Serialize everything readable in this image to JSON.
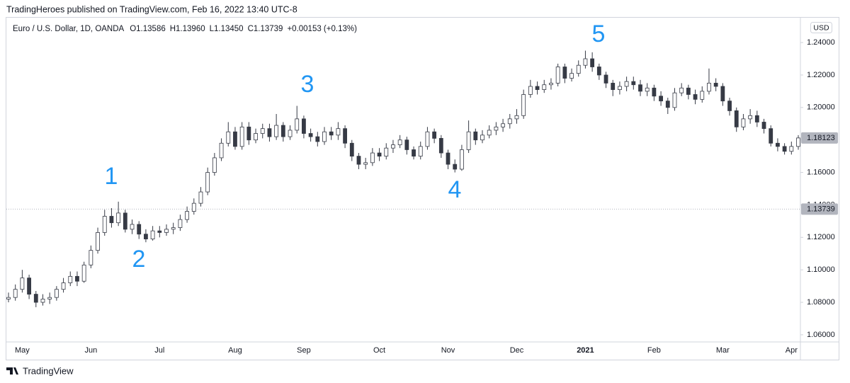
{
  "chart_data": {
    "type": "candlestick",
    "header": "TradingHeroes published on TradingView.com, Feb 16, 2022 13:40 UTC-8",
    "symbol": "Euro / U.S. Dollar, 1D, OANDA",
    "legend_values": [
      "O1.13586",
      "H1.13960",
      "L1.13450",
      "C1.13739",
      "+0.00153 (+0.13%)"
    ],
    "currency": "USD",
    "brand": "TradingView",
    "annotations": [
      "1",
      "2",
      "3",
      "4",
      "5"
    ],
    "up_color": "#ffffff",
    "down_color": "#363a45",
    "wick_color": "#363a45",
    "current_price": 1.13739,
    "ylim": [
      1.0556,
      1.2553
    ],
    "yticks": [
      {
        "value": 1.06,
        "label": "1.06000"
      },
      {
        "value": 1.08,
        "label": "1.08000"
      },
      {
        "value": 1.1,
        "label": "1.10000"
      },
      {
        "value": 1.12,
        "label": "1.12000"
      },
      {
        "value": 1.14,
        "label": "1.14000"
      },
      {
        "value": 1.16,
        "label": "1.16000"
      },
      {
        "value": 1.18,
        "label": "1.18000"
      },
      {
        "value": 1.2,
        "label": "1.20000"
      },
      {
        "value": 1.22,
        "label": "1.22000"
      },
      {
        "value": 1.24,
        "label": "1.24000"
      }
    ],
    "categories": [
      null,
      null,
      "May",
      null,
      null,
      null,
      null,
      null,
      null,
      null,
      null,
      null,
      "Jun",
      null,
      null,
      null,
      null,
      null,
      null,
      null,
      null,
      null,
      "Jul",
      null,
      null,
      null,
      null,
      null,
      null,
      null,
      null,
      null,
      null,
      "Aug",
      null,
      null,
      null,
      null,
      null,
      null,
      null,
      null,
      null,
      "Sep",
      null,
      null,
      null,
      null,
      null,
      null,
      null,
      null,
      null,
      null,
      "Oct",
      null,
      null,
      null,
      null,
      null,
      null,
      null,
      null,
      null,
      "Nov",
      null,
      null,
      null,
      null,
      null,
      null,
      null,
      null,
      null,
      "Dec",
      null,
      null,
      null,
      null,
      null,
      null,
      null,
      null,
      null,
      "2021",
      null,
      null,
      null,
      null,
      null,
      null,
      null,
      null,
      null,
      "Feb",
      null,
      null,
      null,
      null,
      null,
      null,
      null,
      null,
      null,
      "Mar",
      null,
      null,
      null,
      null,
      null,
      null,
      null,
      null,
      null,
      "Apr",
      null
    ],
    "ohlc": [
      [
        1.082,
        1.086,
        1.08,
        1.083
      ],
      [
        1.083,
        1.091,
        1.081,
        1.088
      ],
      [
        1.088,
        1.1,
        1.086,
        1.095
      ],
      [
        1.095,
        1.097,
        1.082,
        1.085
      ],
      [
        1.085,
        1.087,
        1.077,
        1.08
      ],
      [
        1.08,
        1.085,
        1.078,
        1.082
      ],
      [
        1.082,
        1.086,
        1.079,
        1.083
      ],
      [
        1.083,
        1.09,
        1.081,
        1.088
      ],
      [
        1.088,
        1.095,
        1.086,
        1.092
      ],
      [
        1.092,
        1.099,
        1.09,
        1.096
      ],
      [
        1.096,
        1.099,
        1.09,
        1.093
      ],
      [
        1.093,
        1.105,
        1.092,
        1.103
      ],
      [
        1.103,
        1.115,
        1.101,
        1.112
      ],
      [
        1.112,
        1.126,
        1.11,
        1.123
      ],
      [
        1.123,
        1.137,
        1.121,
        1.133
      ],
      [
        1.133,
        1.138,
        1.126,
        1.129
      ],
      [
        1.129,
        1.142,
        1.127,
        1.135
      ],
      [
        1.135,
        1.137,
        1.123,
        1.125
      ],
      [
        1.125,
        1.131,
        1.122,
        1.128
      ],
      [
        1.128,
        1.13,
        1.119,
        1.122
      ],
      [
        1.122,
        1.125,
        1.117,
        1.119
      ],
      [
        1.119,
        1.127,
        1.118,
        1.124
      ],
      [
        1.124,
        1.127,
        1.12,
        1.123
      ],
      [
        1.123,
        1.128,
        1.121,
        1.125
      ],
      [
        1.125,
        1.129,
        1.122,
        1.126
      ],
      [
        1.126,
        1.134,
        1.124,
        1.131
      ],
      [
        1.131,
        1.139,
        1.129,
        1.136
      ],
      [
        1.136,
        1.144,
        1.134,
        1.141
      ],
      [
        1.141,
        1.151,
        1.139,
        1.148
      ],
      [
        1.148,
        1.163,
        1.146,
        1.16
      ],
      [
        1.16,
        1.172,
        1.158,
        1.169
      ],
      [
        1.169,
        1.181,
        1.167,
        1.178
      ],
      [
        1.178,
        1.191,
        1.176,
        1.185
      ],
      [
        1.185,
        1.188,
        1.174,
        1.176
      ],
      [
        1.176,
        1.191,
        1.174,
        1.188
      ],
      [
        1.188,
        1.191,
        1.177,
        1.18
      ],
      [
        1.18,
        1.187,
        1.178,
        1.184
      ],
      [
        1.184,
        1.19,
        1.181,
        1.187
      ],
      [
        1.187,
        1.19,
        1.179,
        1.182
      ],
      [
        1.182,
        1.196,
        1.18,
        1.189
      ],
      [
        1.189,
        1.191,
        1.179,
        1.182
      ],
      [
        1.182,
        1.189,
        1.18,
        1.186
      ],
      [
        1.186,
        1.201,
        1.184,
        1.193
      ],
      [
        1.193,
        1.195,
        1.181,
        1.184
      ],
      [
        1.184,
        1.187,
        1.179,
        1.182
      ],
      [
        1.182,
        1.185,
        1.176,
        1.179
      ],
      [
        1.179,
        1.188,
        1.177,
        1.185
      ],
      [
        1.185,
        1.188,
        1.18,
        1.183
      ],
      [
        1.183,
        1.191,
        1.18,
        1.187
      ],
      [
        1.187,
        1.189,
        1.175,
        1.178
      ],
      [
        1.178,
        1.18,
        1.167,
        1.17
      ],
      [
        1.17,
        1.172,
        1.162,
        1.165
      ],
      [
        1.165,
        1.169,
        1.162,
        1.166
      ],
      [
        1.166,
        1.175,
        1.164,
        1.172
      ],
      [
        1.172,
        1.175,
        1.167,
        1.17
      ],
      [
        1.17,
        1.178,
        1.168,
        1.175
      ],
      [
        1.175,
        1.18,
        1.172,
        1.177
      ],
      [
        1.177,
        1.183,
        1.175,
        1.18
      ],
      [
        1.18,
        1.182,
        1.171,
        1.174
      ],
      [
        1.174,
        1.176,
        1.168,
        1.17
      ],
      [
        1.17,
        1.179,
        1.168,
        1.176
      ],
      [
        1.176,
        1.188,
        1.174,
        1.185
      ],
      [
        1.185,
        1.187,
        1.178,
        1.181
      ],
      [
        1.181,
        1.183,
        1.169,
        1.172
      ],
      [
        1.172,
        1.174,
        1.162,
        1.165
      ],
      [
        1.165,
        1.168,
        1.16,
        1.162
      ],
      [
        1.162,
        1.177,
        1.161,
        1.174
      ],
      [
        1.174,
        1.192,
        1.172,
        1.185
      ],
      [
        1.185,
        1.187,
        1.177,
        1.18
      ],
      [
        1.18,
        1.186,
        1.178,
        1.183
      ],
      [
        1.183,
        1.189,
        1.181,
        1.186
      ],
      [
        1.186,
        1.191,
        1.183,
        1.188
      ],
      [
        1.188,
        1.193,
        1.185,
        1.19
      ],
      [
        1.19,
        1.196,
        1.187,
        1.193
      ],
      [
        1.193,
        1.199,
        1.19,
        1.195
      ],
      [
        1.195,
        1.211,
        1.193,
        1.208
      ],
      [
        1.208,
        1.217,
        1.206,
        1.213
      ],
      [
        1.213,
        1.216,
        1.208,
        1.211
      ],
      [
        1.211,
        1.217,
        1.209,
        1.214
      ],
      [
        1.214,
        1.218,
        1.211,
        1.215
      ],
      [
        1.215,
        1.227,
        1.213,
        1.225
      ],
      [
        1.225,
        1.227,
        1.215,
        1.218
      ],
      [
        1.218,
        1.224,
        1.216,
        1.221
      ],
      [
        1.221,
        1.229,
        1.219,
        1.226
      ],
      [
        1.226,
        1.235,
        1.224,
        1.23
      ],
      [
        1.23,
        1.234,
        1.222,
        1.225
      ],
      [
        1.225,
        1.227,
        1.217,
        1.22
      ],
      [
        1.22,
        1.222,
        1.212,
        1.215
      ],
      [
        1.215,
        1.217,
        1.207,
        1.211
      ],
      [
        1.211,
        1.216,
        1.208,
        1.213
      ],
      [
        1.213,
        1.219,
        1.21,
        1.216
      ],
      [
        1.216,
        1.219,
        1.211,
        1.214
      ],
      [
        1.214,
        1.217,
        1.207,
        1.21
      ],
      [
        1.21,
        1.215,
        1.207,
        1.212
      ],
      [
        1.212,
        1.214,
        1.204,
        1.207
      ],
      [
        1.207,
        1.21,
        1.201,
        1.204
      ],
      [
        1.204,
        1.206,
        1.196,
        1.2
      ],
      [
        1.2,
        1.212,
        1.198,
        1.209
      ],
      [
        1.209,
        1.215,
        1.207,
        1.212
      ],
      [
        1.212,
        1.214,
        1.205,
        1.208
      ],
      [
        1.208,
        1.211,
        1.202,
        1.205
      ],
      [
        1.205,
        1.213,
        1.203,
        1.21
      ],
      [
        1.21,
        1.224,
        1.208,
        1.215
      ],
      [
        1.215,
        1.218,
        1.21,
        1.213
      ],
      [
        1.213,
        1.215,
        1.201,
        1.204
      ],
      [
        1.204,
        1.206,
        1.195,
        1.198
      ],
      [
        1.198,
        1.2,
        1.185,
        1.188
      ],
      [
        1.188,
        1.196,
        1.186,
        1.193
      ],
      [
        1.193,
        1.199,
        1.19,
        1.195
      ],
      [
        1.195,
        1.198,
        1.188,
        1.191
      ],
      [
        1.191,
        1.193,
        1.184,
        1.187
      ],
      [
        1.187,
        1.189,
        1.176,
        1.178
      ],
      [
        1.178,
        1.181,
        1.173,
        1.176
      ],
      [
        1.176,
        1.178,
        1.171,
        1.173
      ],
      [
        1.173,
        1.179,
        1.171,
        1.176
      ],
      [
        1.176,
        1.183,
        1.174,
        1.18123
      ]
    ]
  }
}
